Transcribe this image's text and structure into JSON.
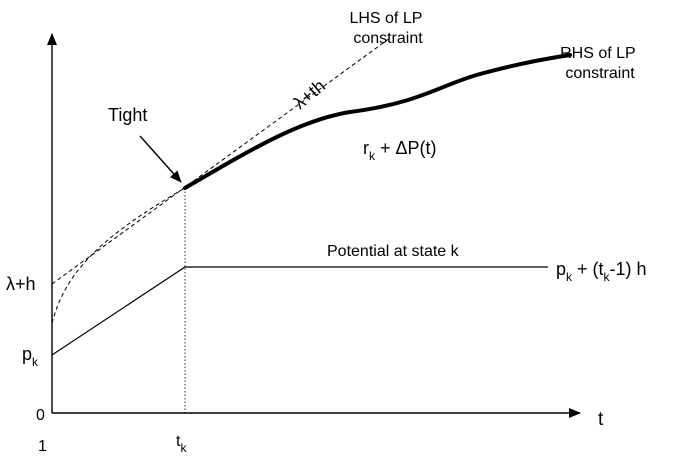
{
  "axes": {
    "x_label": "t",
    "origin_label": "0",
    "x_tick_start": "1",
    "x_tick_tk": {
      "base": "t",
      "sub": "k"
    }
  },
  "y_ticks": {
    "lambda_h": "λ+h",
    "pk": {
      "base": "p",
      "sub": "k"
    }
  },
  "annotations": {
    "lhs": [
      "LHS of LP",
      "constraint"
    ],
    "rhs": [
      "RHS of LP",
      "constraint"
    ],
    "tight": "Tight",
    "lambda_th": "λ+th",
    "rk_dp": {
      "base": "r",
      "sub": "k",
      "rest": " + ΔP(t)"
    },
    "potential": "Potential at state k",
    "pk_expr": {
      "p": "p",
      "sub_k": "k",
      "mid": " + (t",
      "sub_k2": "k",
      "tail": "-1) h"
    }
  }
}
